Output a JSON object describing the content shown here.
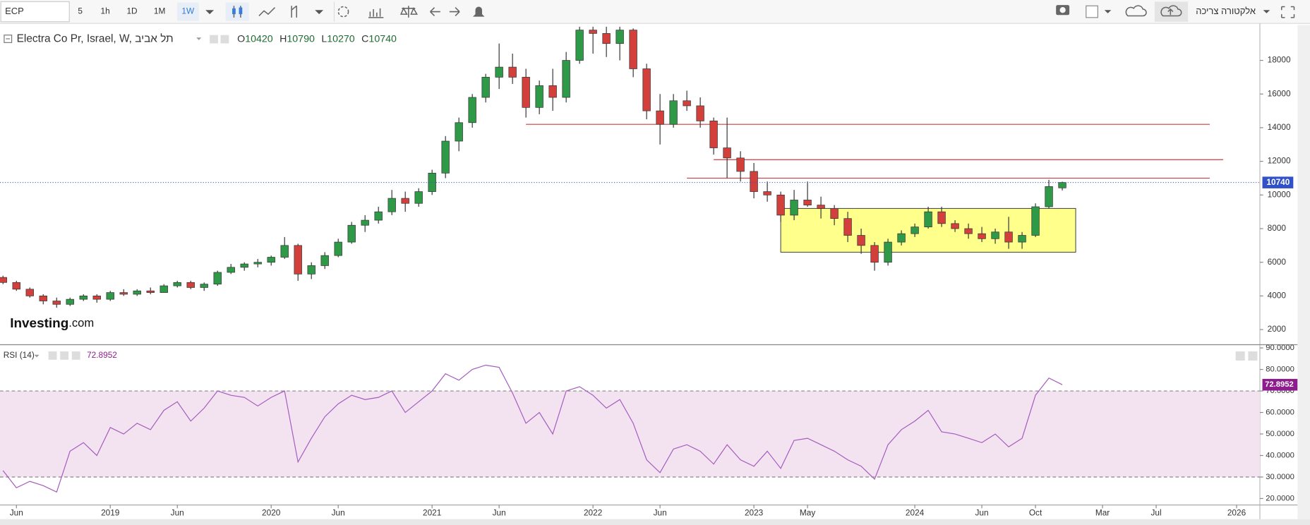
{
  "toolbar": {
    "symbol": "ECP",
    "intervals": [
      "5",
      "1h",
      "1D",
      "1M",
      "1W"
    ],
    "active_interval": 4,
    "account": "אלקטורה צריכה"
  },
  "logo": {
    "brand": "Investing",
    "suffix": ".com"
  },
  "chart_data": [
    {
      "type": "candlestick",
      "title": "Electra Co Pr, Israel, W, תל אביב",
      "ohlc_labels": [
        "O",
        "H",
        "L",
        "C"
      ],
      "x": [
        "2018-05",
        "2018-06",
        "2018-07",
        "2018-08",
        "2018-09",
        "2018-10",
        "2018-11",
        "2018-12",
        "2019-01",
        "2019-02",
        "2019-03",
        "2019-04",
        "2019-05",
        "2019-06",
        "2019-07",
        "2019-08",
        "2019-09",
        "2019-10",
        "2019-11",
        "2019-12",
        "2020-01",
        "2020-02",
        "2020-03",
        "2020-04",
        "2020-05",
        "2020-06",
        "2020-07",
        "2020-08",
        "2020-09",
        "2020-10",
        "2020-11",
        "2020-12",
        "2021-01",
        "2021-02",
        "2021-03",
        "2021-04",
        "2021-05",
        "2021-06",
        "2021-07",
        "2021-08",
        "2021-09",
        "2021-10",
        "2021-11",
        "2021-12",
        "2022-01",
        "2022-02",
        "2022-03",
        "2022-04",
        "2022-05",
        "2022-06",
        "2022-07",
        "2022-08",
        "2022-09",
        "2022-10",
        "2022-11",
        "2022-12",
        "2023-01",
        "2023-02",
        "2023-03",
        "2023-04",
        "2023-05",
        "2023-06",
        "2023-07",
        "2023-08",
        "2023-09",
        "2023-10",
        "2023-11",
        "2023-12",
        "2024-01",
        "2024-02",
        "2024-03",
        "2024-04",
        "2024-05",
        "2024-06",
        "2024-07",
        "2024-08",
        "2024-09",
        "2024-10",
        "2024-11",
        "2024-12"
      ],
      "open": [
        5100,
        4800,
        4400,
        4000,
        3700,
        3500,
        3800,
        4000,
        3800,
        4200,
        4100,
        4300,
        4200,
        4600,
        4800,
        4500,
        4700,
        5400,
        5700,
        5900,
        6000,
        6300,
        7000,
        5300,
        5800,
        6400,
        7200,
        8200,
        8500,
        9000,
        9800,
        9500,
        10200,
        11300,
        13200,
        14300,
        15800,
        17000,
        17600,
        17000,
        15200,
        16500,
        15800,
        18000,
        19800,
        19600,
        19000,
        19800,
        17500,
        15000,
        14200,
        15600,
        15300,
        14400,
        12800,
        12200,
        11400,
        10200,
        10000,
        8800,
        9700,
        9400,
        9200,
        8600,
        7600,
        7000,
        6000,
        7200,
        7700,
        8100,
        9000,
        8300,
        8000,
        7700,
        7400,
        7800,
        7200,
        7600,
        9300,
        10420
      ],
      "high": [
        5200,
        4900,
        4500,
        4100,
        3900,
        3900,
        4100,
        4100,
        4300,
        4400,
        4400,
        4500,
        4700,
        4900,
        4900,
        4800,
        5500,
        5900,
        6000,
        6200,
        6400,
        7500,
        7100,
        6000,
        6600,
        7400,
        8400,
        8800,
        9300,
        10300,
        10200,
        10400,
        11500,
        13500,
        14600,
        16000,
        17200,
        19000,
        18400,
        17500,
        16800,
        17500,
        18500,
        20000,
        20000,
        20000,
        20000,
        19900,
        17800,
        16000,
        16000,
        16200,
        15800,
        14600,
        14600,
        12600,
        11900,
        10800,
        10200,
        10300,
        10800,
        9900,
        9400,
        9000,
        8000,
        7200,
        7400,
        7900,
        8300,
        9300,
        9300,
        8500,
        8300,
        8100,
        8000,
        8700,
        7800,
        9500,
        10900,
        10790
      ],
      "low": [
        4700,
        4300,
        3900,
        3500,
        3300,
        3400,
        3700,
        3600,
        3700,
        4000,
        4000,
        4100,
        4200,
        4500,
        4400,
        4300,
        4600,
        5300,
        5500,
        5700,
        5800,
        6200,
        4900,
        5000,
        5600,
        6300,
        7100,
        7800,
        8300,
        8800,
        9000,
        9300,
        10000,
        11000,
        12600,
        14000,
        15500,
        16300,
        16600,
        14600,
        14800,
        15000,
        15500,
        17800,
        18400,
        18200,
        18000,
        17000,
        14500,
        13000,
        14000,
        15000,
        14000,
        12400,
        11000,
        10800,
        9800,
        9600,
        8400,
        8500,
        9300,
        8600,
        8200,
        7200,
        6500,
        5500,
        5800,
        7000,
        7500,
        8000,
        8100,
        7800,
        7400,
        7200,
        7100,
        6800,
        6800,
        7500,
        9200,
        10270
      ],
      "close": [
        4800,
        4400,
        4000,
        3700,
        3500,
        3800,
        4000,
        3800,
        4200,
        4100,
        4300,
        4200,
        4600,
        4800,
        4500,
        4700,
        5400,
        5700,
        5900,
        6000,
        6300,
        7000,
        5300,
        5800,
        6400,
        7200,
        8200,
        8500,
        9000,
        9800,
        9500,
        10200,
        11300,
        13200,
        14300,
        15800,
        17000,
        17600,
        17000,
        15200,
        16500,
        15800,
        18000,
        19800,
        19600,
        19000,
        19800,
        17500,
        15000,
        14200,
        15600,
        15300,
        14400,
        12800,
        12200,
        11400,
        10200,
        10000,
        8800,
        9700,
        9400,
        9200,
        8600,
        7600,
        7000,
        6000,
        7200,
        7700,
        8100,
        9000,
        8300,
        8000,
        7700,
        7400,
        7800,
        7200,
        7600,
        9300,
        10500,
        10740
      ],
      "up_color": "#2e9a47",
      "down_color": "#d3403b",
      "last_price_color": "#3250c8",
      "xlim": [
        "2018-04",
        "2026-02"
      ],
      "ylim": [
        1100,
        20100
      ],
      "yticks": [
        2000,
        4000,
        6000,
        8000,
        10000,
        12000,
        14000,
        16000,
        18000
      ],
      "levels": [
        {
          "value": 14200,
          "from": "2021-08",
          "to": "2025-11"
        },
        {
          "value": 12100,
          "from": "2022-10",
          "to": "2025-12"
        },
        {
          "value": 11000,
          "from": "2022-08",
          "to": "2025-11"
        }
      ],
      "level_color": "#d23c3c",
      "zone": {
        "from": "2023-03",
        "to": "2025-01",
        "low": 6600,
        "high": 9200,
        "color": "#ffff8c"
      }
    },
    {
      "type": "line",
      "title": "RSI (14)",
      "values": [
        33,
        25,
        28,
        26,
        23,
        42,
        46,
        40,
        53,
        50,
        55,
        52,
        61,
        65,
        56,
        62,
        70,
        68,
        67,
        63,
        67,
        70,
        37,
        48,
        58,
        64,
        68,
        66,
        67,
        70,
        60,
        65,
        70,
        78,
        75,
        80,
        82,
        81,
        69,
        55,
        60,
        50,
        70,
        72,
        68,
        62,
        66,
        55,
        38,
        32,
        43,
        45,
        42,
        36,
        45,
        38,
        35,
        42,
        34,
        47,
        48,
        45,
        42,
        38,
        35,
        29,
        45,
        52,
        56,
        61,
        51,
        50,
        48,
        46,
        50,
        44,
        48,
        68,
        76,
        72.8952
      ],
      "color": "#a45bbd",
      "tag_color": "#8e1c8e",
      "bands": [
        30,
        70
      ],
      "band_fill": "#f3e3f1",
      "xlim": [
        "2018-04",
        "2026-02"
      ],
      "ylim": [
        17,
        91.5
      ],
      "yticks": [
        {
          "value": 20,
          "label": "20.0000"
        },
        {
          "value": 30,
          "label": "30.0000"
        },
        {
          "value": 40,
          "label": "40.0000"
        },
        {
          "value": 50,
          "label": "50.0000"
        },
        {
          "value": 60,
          "label": "60.0000"
        },
        {
          "value": 70,
          "label": "70.0000"
        },
        {
          "value": 80,
          "label": "80.0000"
        },
        {
          "value": 90,
          "label": "90.0000"
        }
      ],
      "xticks": [
        {
          "value": "2018-06",
          "label": "Jun"
        },
        {
          "value": "2019-01",
          "label": "2019"
        },
        {
          "value": "2019-06",
          "label": "Jun"
        },
        {
          "value": "2020-01",
          "label": "2020"
        },
        {
          "value": "2020-06",
          "label": "Jun"
        },
        {
          "value": "2021-01",
          "label": "2021"
        },
        {
          "value": "2021-06",
          "label": "Jun"
        },
        {
          "value": "2022-01",
          "label": "2022"
        },
        {
          "value": "2022-06",
          "label": "Jun"
        },
        {
          "value": "2023-01",
          "label": "2023"
        },
        {
          "value": "2023-05",
          "label": "May"
        },
        {
          "value": "2024-01",
          "label": "2024"
        },
        {
          "value": "2024-06",
          "label": "Jun"
        },
        {
          "value": "2024-10",
          "label": "Oct"
        },
        {
          "value": "2025-03",
          "label": "Mar"
        },
        {
          "value": "2025-07",
          "label": "Jul"
        },
        {
          "value": "2026-01",
          "label": "2026"
        }
      ]
    }
  ]
}
